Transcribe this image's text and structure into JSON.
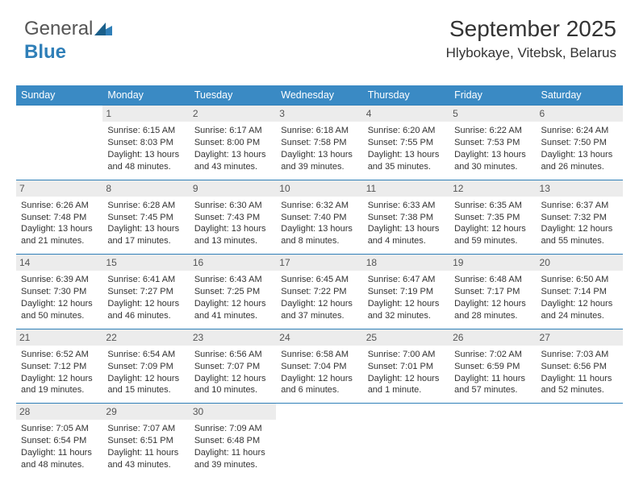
{
  "logo": {
    "text_general": "General",
    "text_blue": "Blue"
  },
  "header": {
    "month_title": "September 2025",
    "location": "Hlybokaye, Vitebsk, Belarus"
  },
  "colors": {
    "header_bg": "#3a8ac4",
    "daynum_bg": "#ececec",
    "border": "#2f7fb8",
    "text": "#333333",
    "logo_gray": "#555555",
    "logo_blue": "#2f7fb8",
    "background": "#ffffff"
  },
  "typography": {
    "month_title_size": 28,
    "location_size": 17,
    "dayheader_size": 12.5,
    "cell_size": 11,
    "font_family": "Arial"
  },
  "calendar": {
    "day_headers": [
      "Sunday",
      "Monday",
      "Tuesday",
      "Wednesday",
      "Thursday",
      "Friday",
      "Saturday"
    ],
    "weeks": [
      [
        {
          "daynum": "",
          "lines": [
            "",
            "",
            "",
            ""
          ]
        },
        {
          "daynum": "1",
          "lines": [
            "Sunrise: 6:15 AM",
            "Sunset: 8:03 PM",
            "Daylight: 13 hours",
            "and 48 minutes."
          ]
        },
        {
          "daynum": "2",
          "lines": [
            "Sunrise: 6:17 AM",
            "Sunset: 8:00 PM",
            "Daylight: 13 hours",
            "and 43 minutes."
          ]
        },
        {
          "daynum": "3",
          "lines": [
            "Sunrise: 6:18 AM",
            "Sunset: 7:58 PM",
            "Daylight: 13 hours",
            "and 39 minutes."
          ]
        },
        {
          "daynum": "4",
          "lines": [
            "Sunrise: 6:20 AM",
            "Sunset: 7:55 PM",
            "Daylight: 13 hours",
            "and 35 minutes."
          ]
        },
        {
          "daynum": "5",
          "lines": [
            "Sunrise: 6:22 AM",
            "Sunset: 7:53 PM",
            "Daylight: 13 hours",
            "and 30 minutes."
          ]
        },
        {
          "daynum": "6",
          "lines": [
            "Sunrise: 6:24 AM",
            "Sunset: 7:50 PM",
            "Daylight: 13 hours",
            "and 26 minutes."
          ]
        }
      ],
      [
        {
          "daynum": "7",
          "lines": [
            "Sunrise: 6:26 AM",
            "Sunset: 7:48 PM",
            "Daylight: 13 hours",
            "and 21 minutes."
          ]
        },
        {
          "daynum": "8",
          "lines": [
            "Sunrise: 6:28 AM",
            "Sunset: 7:45 PM",
            "Daylight: 13 hours",
            "and 17 minutes."
          ]
        },
        {
          "daynum": "9",
          "lines": [
            "Sunrise: 6:30 AM",
            "Sunset: 7:43 PM",
            "Daylight: 13 hours",
            "and 13 minutes."
          ]
        },
        {
          "daynum": "10",
          "lines": [
            "Sunrise: 6:32 AM",
            "Sunset: 7:40 PM",
            "Daylight: 13 hours",
            "and 8 minutes."
          ]
        },
        {
          "daynum": "11",
          "lines": [
            "Sunrise: 6:33 AM",
            "Sunset: 7:38 PM",
            "Daylight: 13 hours",
            "and 4 minutes."
          ]
        },
        {
          "daynum": "12",
          "lines": [
            "Sunrise: 6:35 AM",
            "Sunset: 7:35 PM",
            "Daylight: 12 hours",
            "and 59 minutes."
          ]
        },
        {
          "daynum": "13",
          "lines": [
            "Sunrise: 6:37 AM",
            "Sunset: 7:32 PM",
            "Daylight: 12 hours",
            "and 55 minutes."
          ]
        }
      ],
      [
        {
          "daynum": "14",
          "lines": [
            "Sunrise: 6:39 AM",
            "Sunset: 7:30 PM",
            "Daylight: 12 hours",
            "and 50 minutes."
          ]
        },
        {
          "daynum": "15",
          "lines": [
            "Sunrise: 6:41 AM",
            "Sunset: 7:27 PM",
            "Daylight: 12 hours",
            "and 46 minutes."
          ]
        },
        {
          "daynum": "16",
          "lines": [
            "Sunrise: 6:43 AM",
            "Sunset: 7:25 PM",
            "Daylight: 12 hours",
            "and 41 minutes."
          ]
        },
        {
          "daynum": "17",
          "lines": [
            "Sunrise: 6:45 AM",
            "Sunset: 7:22 PM",
            "Daylight: 12 hours",
            "and 37 minutes."
          ]
        },
        {
          "daynum": "18",
          "lines": [
            "Sunrise: 6:47 AM",
            "Sunset: 7:19 PM",
            "Daylight: 12 hours",
            "and 32 minutes."
          ]
        },
        {
          "daynum": "19",
          "lines": [
            "Sunrise: 6:48 AM",
            "Sunset: 7:17 PM",
            "Daylight: 12 hours",
            "and 28 minutes."
          ]
        },
        {
          "daynum": "20",
          "lines": [
            "Sunrise: 6:50 AM",
            "Sunset: 7:14 PM",
            "Daylight: 12 hours",
            "and 24 minutes."
          ]
        }
      ],
      [
        {
          "daynum": "21",
          "lines": [
            "Sunrise: 6:52 AM",
            "Sunset: 7:12 PM",
            "Daylight: 12 hours",
            "and 19 minutes."
          ]
        },
        {
          "daynum": "22",
          "lines": [
            "Sunrise: 6:54 AM",
            "Sunset: 7:09 PM",
            "Daylight: 12 hours",
            "and 15 minutes."
          ]
        },
        {
          "daynum": "23",
          "lines": [
            "Sunrise: 6:56 AM",
            "Sunset: 7:07 PM",
            "Daylight: 12 hours",
            "and 10 minutes."
          ]
        },
        {
          "daynum": "24",
          "lines": [
            "Sunrise: 6:58 AM",
            "Sunset: 7:04 PM",
            "Daylight: 12 hours",
            "and 6 minutes."
          ]
        },
        {
          "daynum": "25",
          "lines": [
            "Sunrise: 7:00 AM",
            "Sunset: 7:01 PM",
            "Daylight: 12 hours",
            "and 1 minute."
          ]
        },
        {
          "daynum": "26",
          "lines": [
            "Sunrise: 7:02 AM",
            "Sunset: 6:59 PM",
            "Daylight: 11 hours",
            "and 57 minutes."
          ]
        },
        {
          "daynum": "27",
          "lines": [
            "Sunrise: 7:03 AM",
            "Sunset: 6:56 PM",
            "Daylight: 11 hours",
            "and 52 minutes."
          ]
        }
      ],
      [
        {
          "daynum": "28",
          "lines": [
            "Sunrise: 7:05 AM",
            "Sunset: 6:54 PM",
            "Daylight: 11 hours",
            "and 48 minutes."
          ]
        },
        {
          "daynum": "29",
          "lines": [
            "Sunrise: 7:07 AM",
            "Sunset: 6:51 PM",
            "Daylight: 11 hours",
            "and 43 minutes."
          ]
        },
        {
          "daynum": "30",
          "lines": [
            "Sunrise: 7:09 AM",
            "Sunset: 6:48 PM",
            "Daylight: 11 hours",
            "and 39 minutes."
          ]
        },
        {
          "daynum": "",
          "lines": [
            "",
            "",
            "",
            ""
          ]
        },
        {
          "daynum": "",
          "lines": [
            "",
            "",
            "",
            ""
          ]
        },
        {
          "daynum": "",
          "lines": [
            "",
            "",
            "",
            ""
          ]
        },
        {
          "daynum": "",
          "lines": [
            "",
            "",
            "",
            ""
          ]
        }
      ]
    ]
  }
}
